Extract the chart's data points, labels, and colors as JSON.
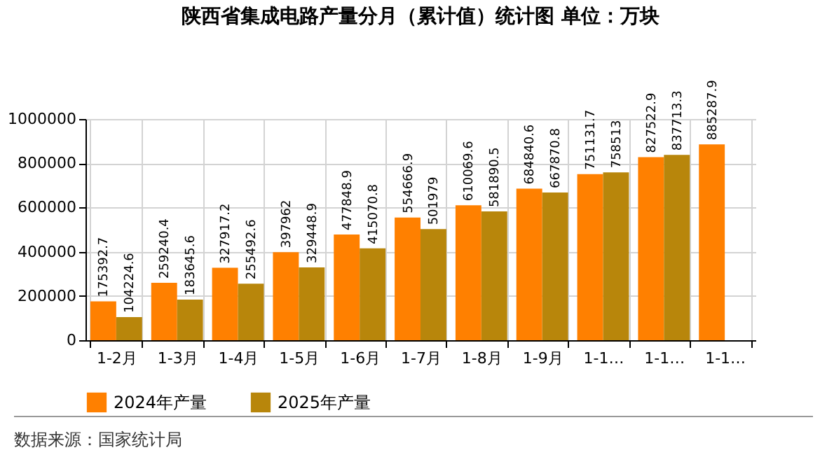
{
  "chart_data": {
    "type": "bar",
    "title": "陕西省集成电路产量分月（累计值）统计图 单位：万块",
    "categories": [
      "1-2月",
      "1-3月",
      "1-4月",
      "1-5月",
      "1-6月",
      "1-7月",
      "1-8月",
      "1-9月",
      "1-1…",
      "1-1…",
      "1-1…"
    ],
    "series": [
      {
        "name": "2024年产量",
        "color": "#ff8000",
        "values": [
          175392.7,
          259240.4,
          327917.2,
          397962,
          477848.9,
          554666.9,
          610069.6,
          684840.6,
          751131.7,
          827522.9,
          885287.9
        ]
      },
      {
        "name": "2025年产量",
        "color": "#b8860b",
        "values": [
          104224.6,
          183645.6,
          255492.6,
          329448.9,
          415070.8,
          501979,
          581890.5,
          667870.8,
          758513,
          837713.3,
          null
        ]
      }
    ],
    "ylim": [
      0,
      1000000
    ],
    "yticks": [
      0,
      200000,
      400000,
      600000,
      800000,
      1000000
    ],
    "grid": true,
    "legend": "bottom",
    "data_labels": true,
    "annotations": [
      "数据来源：国家统计局"
    ]
  }
}
